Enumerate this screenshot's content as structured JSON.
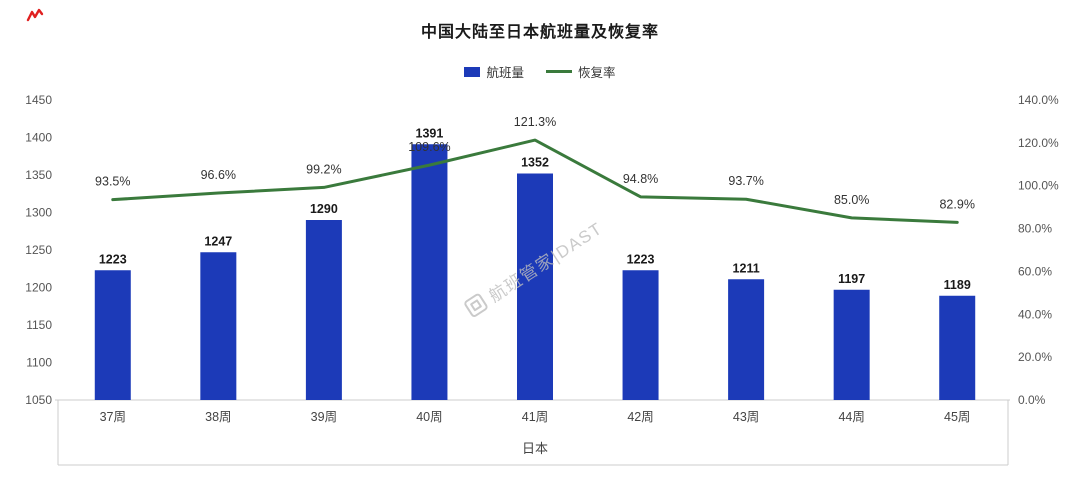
{
  "title": "中国大陆至日本航班量及恢复率",
  "watermark": "航班管家|DAST",
  "icons": {
    "brand_mark": "red-zigzag-logo-fragment",
    "watermark_logo": "rounded-square-logo"
  },
  "colors": {
    "bar": "#1c3ab8",
    "line": "#3a7a3c",
    "axis_line": "#cccccc",
    "tick_text": "#555555",
    "bar_label": "#1a1a1a",
    "line_label": "#333333",
    "brand_red": "#e02020"
  },
  "legend": [
    {
      "label": "航班量",
      "type": "bar",
      "color": "#1c3ab8"
    },
    {
      "label": "恢复率",
      "type": "line",
      "color": "#3a7a3c"
    }
  ],
  "chart_data": {
    "type": "combo-bar-line",
    "title": "中国大陆至日本航班量及恢复率",
    "categories": [
      "37周",
      "38周",
      "39周",
      "40周",
      "41周",
      "42周",
      "43周",
      "44周",
      "45周"
    ],
    "xlabel": "日本",
    "series": [
      {
        "name": "航班量",
        "type": "bar",
        "axis": "left",
        "color": "#1c3ab8",
        "values": [
          1223,
          1247,
          1290,
          1391,
          1352,
          1223,
          1211,
          1197,
          1189
        ],
        "labels": [
          "1223",
          "1247",
          "1290",
          "1391",
          "1352",
          "1223",
          "1211",
          "1197",
          "1189"
        ]
      },
      {
        "name": "恢复率",
        "type": "line",
        "axis": "right",
        "color": "#3a7a3c",
        "values": [
          93.5,
          96.6,
          99.2,
          109.6,
          121.3,
          94.8,
          93.7,
          85.0,
          82.9
        ],
        "labels": [
          "93.5%",
          "96.6%",
          "99.2%",
          "109.6%",
          "121.3%",
          "94.8%",
          "93.7%",
          "85.0%",
          "82.9%"
        ]
      }
    ],
    "left_axis": {
      "min": 1050,
      "max": 1450,
      "step": 50,
      "ticks": [
        "1450",
        "1400",
        "1350",
        "1300",
        "1250",
        "1200",
        "1150",
        "1100",
        "1050"
      ]
    },
    "right_axis": {
      "min": 0,
      "max": 140,
      "step": 20,
      "ticks": [
        "140.0%",
        "120.0%",
        "100.0%",
        "80.0%",
        "60.0%",
        "40.0%",
        "20.0%",
        "0.0%"
      ]
    },
    "grid": false,
    "legend_position": "top-center"
  }
}
